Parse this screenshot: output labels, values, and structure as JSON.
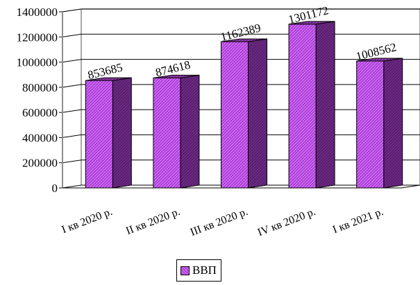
{
  "chart_data": {
    "type": "bar",
    "style": "3d",
    "categories": [
      "I кв 2020 р.",
      "II кв 2020 р.",
      "III кв 2020 р.",
      "IV кв 2020 р.",
      "I кв 2021 р."
    ],
    "series": [
      {
        "name": "ВВП",
        "values": [
          853685,
          874618,
          1162389,
          1301172,
          1008562
        ],
        "data_labels": [
          "853685",
          "874618",
          "1162389",
          "1301172",
          "1008562"
        ],
        "color": "#b23de0"
      }
    ],
    "ylim": [
      0,
      1400000
    ],
    "yticks": [
      0,
      200000,
      400000,
      600000,
      800000,
      1000000,
      1200000,
      1400000
    ],
    "ytick_labels": [
      "0",
      "200000",
      "400000",
      "600000",
      "800000",
      "1000000",
      "1200000",
      "1400000"
    ],
    "grid": true,
    "legend_position": "bottom"
  }
}
